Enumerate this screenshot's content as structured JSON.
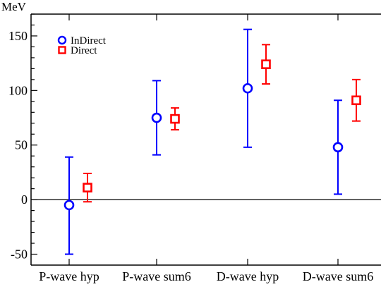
{
  "chart_data": {
    "type": "scatter",
    "title": "",
    "xlabel": "",
    "ylabel": "",
    "unit_label": "MeV",
    "categories": [
      "P-wave hyp",
      "P-wave sum6",
      "D-wave hyp",
      "D-wave sum6"
    ],
    "ylim": [
      -60,
      170
    ],
    "yticks": [
      -50,
      0,
      50,
      100,
      150
    ],
    "reference_line_y": 0,
    "grid": false,
    "legend_position": "top-left",
    "series": [
      {
        "name": "InDirect",
        "marker": "circle",
        "color": "#0000ff",
        "values": [
          -5,
          75,
          102,
          48
        ],
        "err_low": [
          -50,
          41,
          48,
          5
        ],
        "err_high": [
          39,
          109,
          156,
          91
        ]
      },
      {
        "name": "Direct",
        "marker": "square",
        "color": "#ff0000",
        "values": [
          11,
          74,
          124,
          91
        ],
        "err_low": [
          -2,
          64,
          106,
          72
        ],
        "err_high": [
          24,
          84,
          142,
          110
        ]
      }
    ]
  }
}
